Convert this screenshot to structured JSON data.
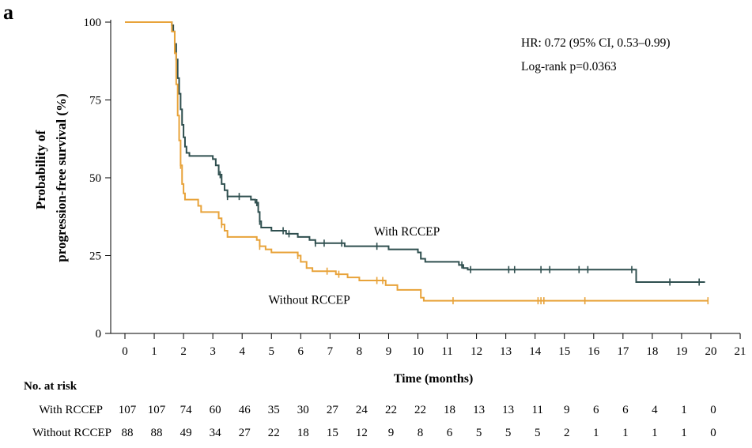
{
  "panel_label": "a",
  "chart_data": {
    "type": "line",
    "subtype": "kaplan-meier",
    "ylabel_lines": [
      "Probability of",
      "progression-free survival (%)"
    ],
    "xlabel": "Time (months)",
    "xlim": [
      0,
      21
    ],
    "ylim": [
      0,
      100
    ],
    "x_ticks": [
      0,
      1,
      2,
      3,
      4,
      5,
      6,
      7,
      8,
      9,
      10,
      11,
      12,
      13,
      14,
      15,
      16,
      17,
      18,
      19,
      20,
      21
    ],
    "y_ticks": [
      0,
      25,
      50,
      75,
      100
    ],
    "annotations": {
      "hr": "HR: 0.72 (95% CI, 0.53–0.99)",
      "logrank": "Log-rank p=0.0363"
    },
    "series": [
      {
        "name": "With RCCEP",
        "color": "#2f4f4f",
        "steps": [
          [
            0,
            100
          ],
          [
            1.55,
            100
          ],
          [
            1.6,
            99
          ],
          [
            1.65,
            97
          ],
          [
            1.7,
            93
          ],
          [
            1.75,
            88
          ],
          [
            1.8,
            82
          ],
          [
            1.85,
            77
          ],
          [
            1.9,
            72
          ],
          [
            1.95,
            67
          ],
          [
            2.0,
            63
          ],
          [
            2.05,
            60
          ],
          [
            2.1,
            58
          ],
          [
            2.2,
            57
          ],
          [
            3.0,
            56
          ],
          [
            3.1,
            54
          ],
          [
            3.2,
            51
          ],
          [
            3.3,
            48
          ],
          [
            3.4,
            46
          ],
          [
            3.5,
            44
          ],
          [
            4.3,
            43
          ],
          [
            4.45,
            42
          ],
          [
            4.55,
            39
          ],
          [
            4.6,
            36
          ],
          [
            4.65,
            34
          ],
          [
            5.0,
            33
          ],
          [
            5.5,
            32
          ],
          [
            5.9,
            31
          ],
          [
            6.3,
            30
          ],
          [
            6.5,
            29
          ],
          [
            7.5,
            28
          ],
          [
            8.0,
            28
          ],
          [
            9.0,
            27
          ],
          [
            10.0,
            26
          ],
          [
            10.1,
            24
          ],
          [
            10.25,
            23
          ],
          [
            11.4,
            22
          ],
          [
            11.55,
            21
          ],
          [
            11.7,
            20.5
          ],
          [
            17.4,
            20.5
          ],
          [
            17.45,
            16.5
          ],
          [
            19.8,
            16.5
          ]
        ],
        "censored": [
          3.25,
          3.5,
          3.9,
          4.5,
          4.6,
          5.4,
          5.6,
          6.5,
          6.8,
          7.4,
          8.6,
          11.5,
          11.8,
          13.1,
          13.3,
          14.2,
          14.5,
          15.5,
          15.8,
          17.3,
          18.6,
          19.6
        ],
        "label": "With RCCEP",
        "label_pos": [
          8.5,
          31.5
        ]
      },
      {
        "name": "Without RCCEP",
        "color": "#e8a33a",
        "steps": [
          [
            0,
            100
          ],
          [
            1.5,
            100
          ],
          [
            1.6,
            97
          ],
          [
            1.7,
            90
          ],
          [
            1.75,
            80
          ],
          [
            1.8,
            70
          ],
          [
            1.85,
            62
          ],
          [
            1.9,
            54
          ],
          [
            1.95,
            48
          ],
          [
            2.0,
            45
          ],
          [
            2.05,
            43
          ],
          [
            2.5,
            41
          ],
          [
            2.6,
            39
          ],
          [
            3.2,
            37
          ],
          [
            3.3,
            35
          ],
          [
            3.4,
            33
          ],
          [
            3.5,
            31
          ],
          [
            4.5,
            30
          ],
          [
            4.6,
            28
          ],
          [
            4.8,
            27
          ],
          [
            5.0,
            26
          ],
          [
            5.9,
            25
          ],
          [
            6.0,
            23
          ],
          [
            6.2,
            21
          ],
          [
            6.4,
            20
          ],
          [
            7.2,
            19
          ],
          [
            7.6,
            18
          ],
          [
            8.0,
            17
          ],
          [
            8.9,
            15.5
          ],
          [
            9.3,
            14
          ],
          [
            10.1,
            11.5
          ],
          [
            10.2,
            10.5
          ],
          [
            19.9,
            10.5
          ]
        ],
        "censored": [
          1.9,
          3.3,
          4.6,
          5.9,
          6.9,
          7.3,
          8.6,
          8.8,
          11.2,
          14.1,
          14.2,
          14.3,
          15.7,
          19.9
        ],
        "label": "Without RCCEP",
        "label_pos": [
          4.9,
          9.5
        ]
      }
    ]
  },
  "risk_table": {
    "title": "No. at risk",
    "rows": [
      {
        "label": "With RCCEP",
        "values": [
          "107",
          "107",
          "74",
          "60",
          "46",
          "35",
          "30",
          "27",
          "24",
          "22",
          "22",
          "18",
          "13",
          "13",
          "11",
          "9",
          "6",
          "6",
          "4",
          "1",
          "0"
        ]
      },
      {
        "label": "Without RCCEP",
        "values": [
          "88",
          "88",
          "49",
          "34",
          "27",
          "22",
          "18",
          "15",
          "12",
          "9",
          "8",
          "6",
          "5",
          "5",
          "5",
          "2",
          "1",
          "1",
          "1",
          "1",
          "0"
        ]
      }
    ]
  }
}
